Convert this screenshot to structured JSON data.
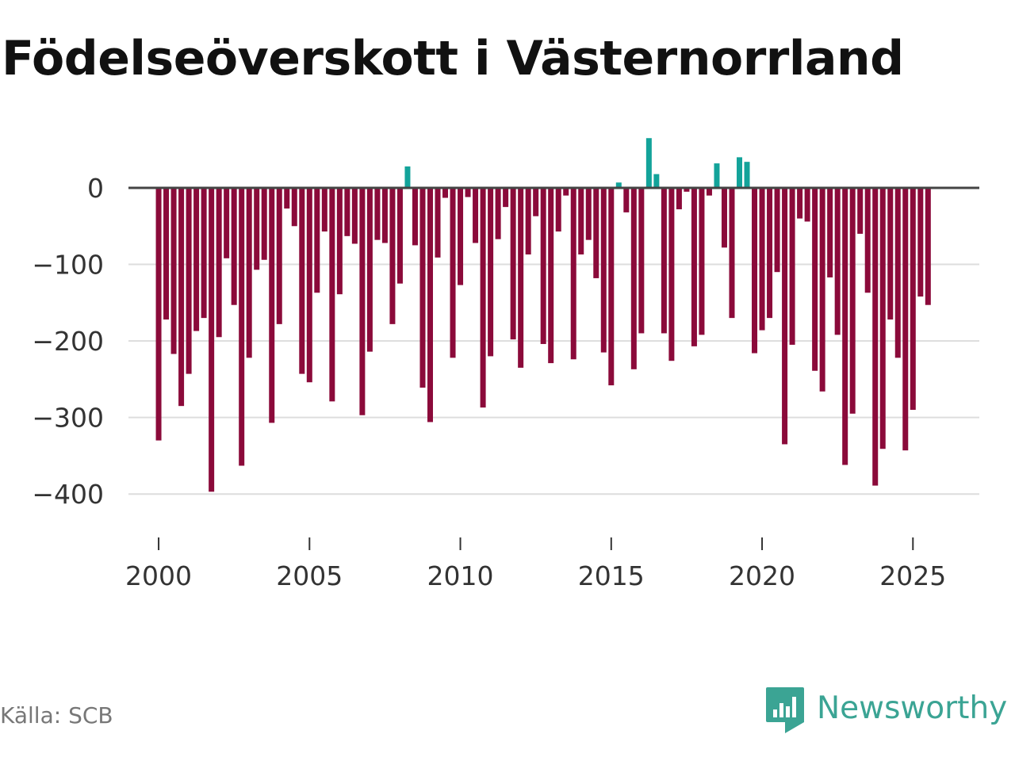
{
  "chart_data": {
    "type": "bar",
    "title": "Födelseöverskott i Västernorrland",
    "source": "Källa: SCB",
    "brand": "Newsworthy",
    "xlabel": "",
    "ylabel": "",
    "ylim": [
      -420,
      70
    ],
    "xlim": [
      1999.0,
      2027.2
    ],
    "y_ticks": [
      0,
      -100,
      -200,
      -300,
      -400
    ],
    "y_tick_labels": [
      "0",
      "−100",
      "−200",
      "−300",
      "−400"
    ],
    "x_ticks": [
      2000,
      2005,
      2010,
      2015,
      2020,
      2025
    ],
    "x_tick_labels": [
      "2000",
      "2005",
      "2010",
      "2015",
      "2020",
      "2025"
    ],
    "frequency": "quarterly",
    "start": 2000.0,
    "positive_color": "#13a39a",
    "negative_color": "#8b0a3a",
    "zero_line_color": "#444444",
    "grid_color": "#dddddd",
    "values": [
      -330,
      -172,
      -217,
      -285,
      -243,
      -187,
      -170,
      -397,
      -195,
      -92,
      -153,
      -363,
      -222,
      -107,
      -94,
      -307,
      -178,
      -27,
      -50,
      -243,
      -254,
      -137,
      -57,
      -279,
      -139,
      -63,
      -73,
      -297,
      -214,
      -68,
      -72,
      -178,
      -125,
      28,
      -75,
      -261,
      -306,
      -91,
      -13,
      -222,
      -127,
      -12,
      -72,
      -287,
      -220,
      -67,
      -25,
      -198,
      -235,
      -87,
      -37,
      -204,
      -229,
      -57,
      -10,
      -224,
      -87,
      -68,
      -118,
      -215,
      -258,
      7,
      -32,
      -237,
      -190,
      65,
      18,
      -190,
      -226,
      -28,
      -5,
      -207,
      -192,
      -10,
      32,
      -78,
      -170,
      40,
      34,
      -216,
      -186,
      -170,
      -110,
      -335,
      -205,
      -40,
      -44,
      -239,
      -266,
      -117,
      -192,
      -362,
      -295,
      -60,
      -137,
      -389,
      -341,
      -172,
      -222,
      -343,
      -290,
      -142,
      -153
    ]
  }
}
